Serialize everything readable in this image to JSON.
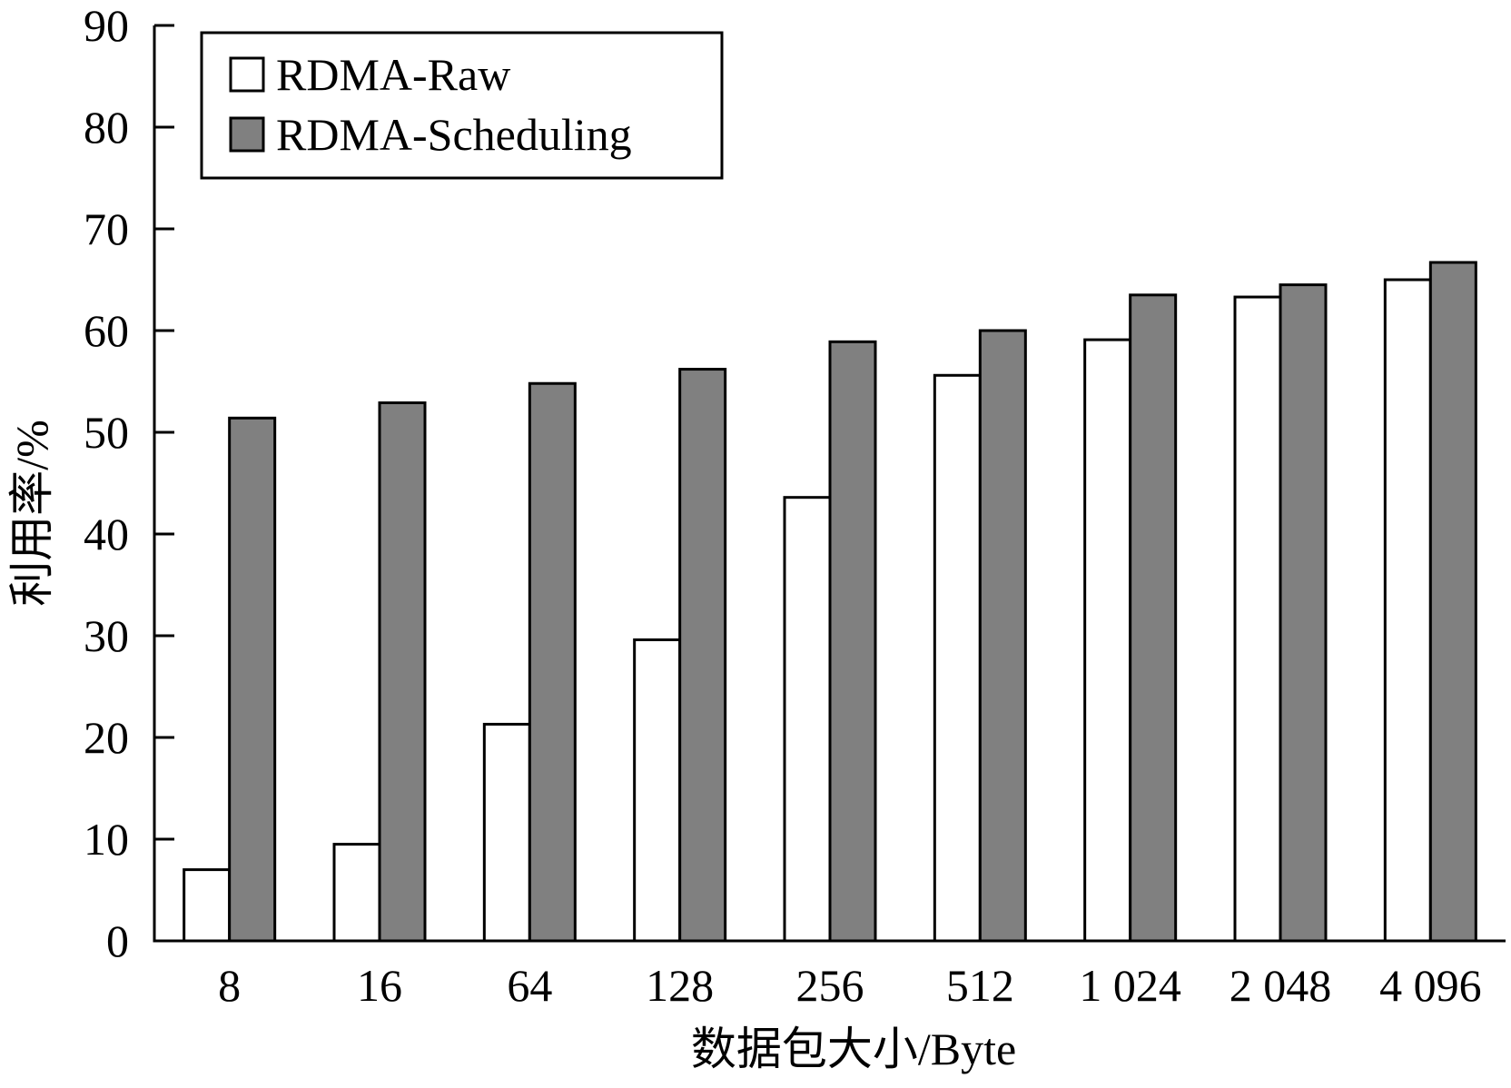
{
  "chart_data": {
    "type": "bar",
    "title": "",
    "xlabel": "数据包大小/Byte",
    "ylabel": "利用率/%",
    "categories": [
      "8",
      "16",
      "64",
      "128",
      "256",
      "512",
      "1 024",
      "2 048",
      "4 096"
    ],
    "series": [
      {
        "name": "RDMA-Raw",
        "color": "#ffffff",
        "values": [
          7.0,
          9.5,
          21.3,
          29.6,
          43.6,
          55.6,
          59.1,
          63.3,
          65.0
        ]
      },
      {
        "name": "RDMA-Scheduling",
        "color": "#808080",
        "values": [
          51.4,
          52.9,
          54.8,
          56.2,
          58.9,
          60.0,
          63.5,
          64.5,
          66.7
        ]
      }
    ],
    "ylim": [
      0,
      90
    ],
    "yticks": [
      0,
      10,
      20,
      30,
      40,
      50,
      60,
      70,
      80,
      90
    ],
    "grid": false,
    "legend_position": "top-left"
  }
}
